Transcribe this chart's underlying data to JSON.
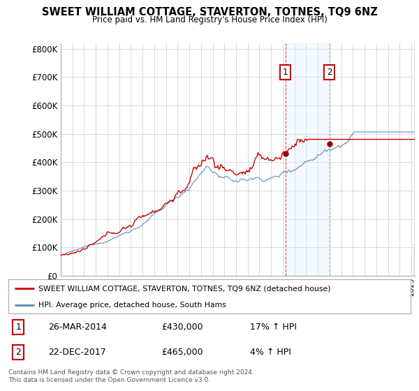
{
  "title": "SWEET WILLIAM COTTAGE, STAVERTON, TOTNES, TQ9 6NZ",
  "subtitle": "Price paid vs. HM Land Registry's House Price Index (HPI)",
  "ylabel_ticks": [
    "£0",
    "£100K",
    "£200K",
    "£300K",
    "£400K",
    "£500K",
    "£600K",
    "£700K",
    "£800K"
  ],
  "ytick_values": [
    0,
    100000,
    200000,
    300000,
    400000,
    500000,
    600000,
    700000,
    800000
  ],
  "ylim": [
    0,
    820000
  ],
  "xlim_start": 1995.0,
  "xlim_end": 2025.3,
  "red_color": "#cc0000",
  "blue_color": "#5588bb",
  "blue_fill_color": "#ddeeff",
  "marker1_x": 2014.22,
  "marker1_y": 430000,
  "marker2_x": 2017.98,
  "marker2_y": 465000,
  "legend_red_label": "SWEET WILLIAM COTTAGE, STAVERTON, TOTNES, TQ9 6NZ (detached house)",
  "legend_blue_label": "HPI: Average price, detached house, South Hams",
  "sale1_date": "26-MAR-2014",
  "sale1_price": "£430,000",
  "sale1_hpi": "17% ↑ HPI",
  "sale2_date": "22-DEC-2017",
  "sale2_price": "£465,000",
  "sale2_hpi": "4% ↑ HPI",
  "footer": "Contains HM Land Registry data © Crown copyright and database right 2024.\nThis data is licensed under the Open Government Licence v3.0.",
  "background_color": "#ffffff",
  "grid_color": "#cccccc",
  "hatch_color": "#dddddd"
}
